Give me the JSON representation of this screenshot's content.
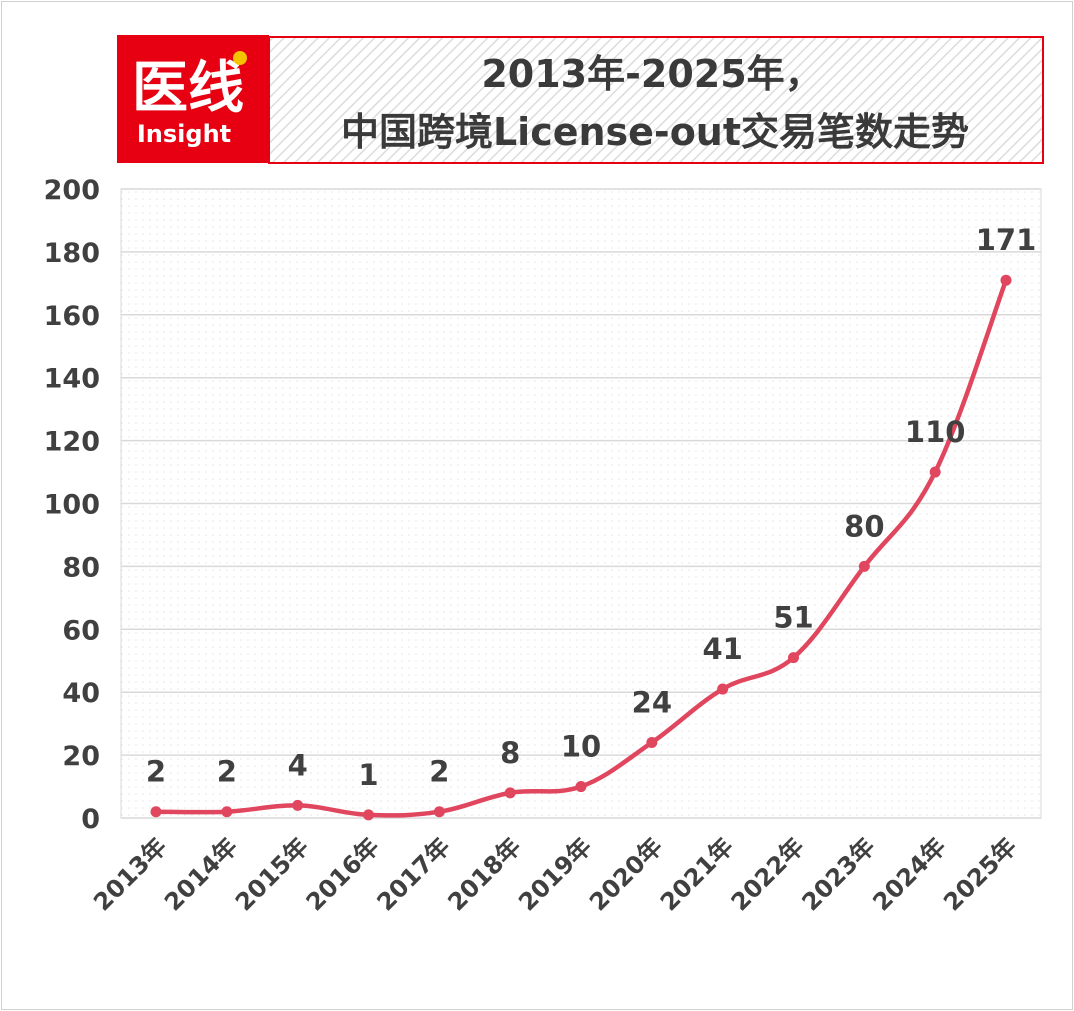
{
  "brand": {
    "logo_text_cn": "医线",
    "logo_text_en": "Insight",
    "logo_bg_color": "#e60012",
    "logo_dot_color": "#f5c400"
  },
  "chart_data": {
    "type": "line",
    "title_line1": "2013年-2025年，",
    "title_line2": "中国跨境License-out交易笔数走势",
    "categories": [
      "2013年",
      "2014年",
      "2015年",
      "2016年",
      "2017年",
      "2018年",
      "2019年",
      "2020年",
      "2021年",
      "2022年",
      "2023年",
      "2024年",
      "2025年"
    ],
    "series": [
      {
        "values": [
          2,
          2,
          4,
          1,
          2,
          8,
          10,
          24,
          41,
          51,
          80,
          110,
          171
        ],
        "color": "#e0465e"
      }
    ],
    "data_labels": [
      "2",
      "2",
      "4",
      "1",
      "2",
      "8",
      "10",
      "24",
      "41",
      "51",
      "80",
      "110",
      "171"
    ],
    "ylim": [
      0,
      200
    ],
    "yticks": [
      0,
      20,
      40,
      60,
      80,
      100,
      120,
      140,
      160,
      180,
      200
    ],
    "ytick_labels": [
      "0",
      "20",
      "40",
      "60",
      "80",
      "100",
      "120",
      "140",
      "160",
      "180",
      "200"
    ],
    "xlabel": "",
    "ylabel": "",
    "grid": true,
    "legend": "none",
    "title_border_color": "#e60012"
  }
}
